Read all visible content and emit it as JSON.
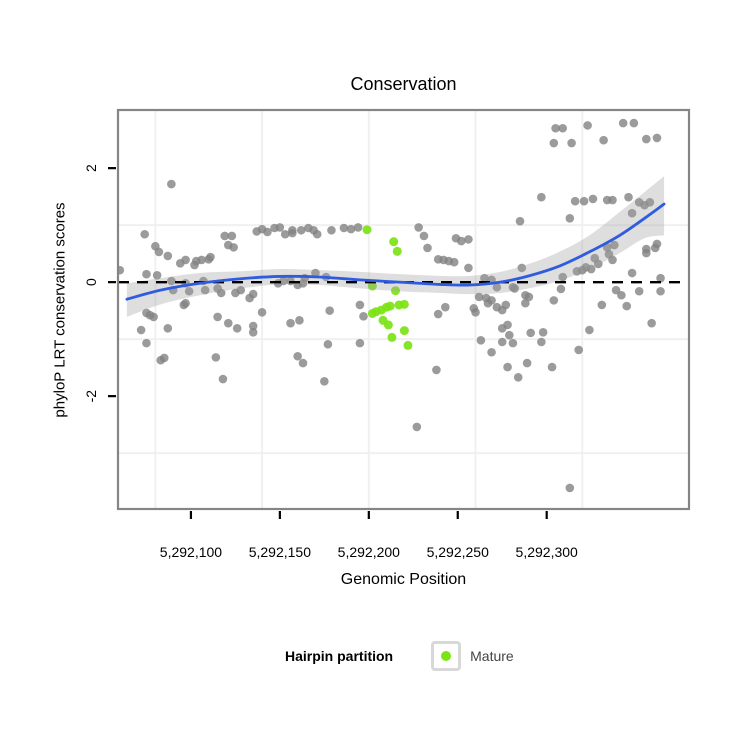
{
  "title": "Conservation",
  "x_axis": {
    "label": "Genomic Position",
    "ticks": [
      {
        "value": 5292100,
        "label": "5,292,100"
      },
      {
        "value": 5292150,
        "label": "5,292,150"
      },
      {
        "value": 5292200,
        "label": "5,292,200"
      },
      {
        "value": 5292250,
        "label": "5,292,250"
      },
      {
        "value": 5292300,
        "label": "5,292,300"
      }
    ]
  },
  "y_axis": {
    "label": "phyloP LRT conservation scores",
    "ticks": [
      {
        "value": 2,
        "label": "2"
      },
      {
        "value": 0,
        "label": "0"
      },
      {
        "value": -2,
        "label": "-2"
      }
    ]
  },
  "legend": {
    "title": "Hairpin partition",
    "items": [
      {
        "label": "Mature",
        "color": "#7CE314"
      }
    ]
  },
  "colors": {
    "point_gray": "#828282",
    "mature_green": "#7CE314",
    "smooth_line": "#2F5CDF",
    "band": "#9E9E9E",
    "grid": "#F0F0F0",
    "panel_border": "#858585",
    "dashed_line": "#000000",
    "tick": "#000000"
  },
  "chart_data": {
    "type": "scatter",
    "title": "Conservation",
    "xlabel": "Genomic Position",
    "ylabel": "phyloP LRT conservation scores",
    "x_domain": [
      5292059,
      5292380
    ],
    "y_domain": [
      -3.98,
      3.02
    ],
    "x_gridlines": [
      5292080,
      5292140,
      5292200,
      5292260,
      5292320
    ],
    "y_gridlines": [
      -3,
      -1,
      1
    ],
    "zero_line_y": 0,
    "legend_position": "bottom",
    "series": [
      {
        "name": "Conservation scores",
        "color": "#828282",
        "points": [
          [
            5292060,
            0.21
          ],
          [
            5292072,
            -0.84
          ],
          [
            5292074,
            0.84
          ],
          [
            5292075,
            0.14
          ],
          [
            5292075,
            -0.54
          ],
          [
            5292075,
            -1.07
          ],
          [
            5292077,
            -0.58
          ],
          [
            5292079,
            -0.61
          ],
          [
            5292080,
            0.63
          ],
          [
            5292081,
            0.12
          ],
          [
            5292082,
            0.53
          ],
          [
            5292083,
            -1.37
          ],
          [
            5292085,
            -1.33
          ],
          [
            5292087,
            0.46
          ],
          [
            5292087,
            -0.81
          ],
          [
            5292089,
            1.72
          ],
          [
            5292089,
            0.02
          ],
          [
            5292090,
            -0.14
          ],
          [
            5292094,
            0.33
          ],
          [
            5292096,
            -0.4
          ],
          [
            5292097,
            0.39
          ],
          [
            5292097,
            -0.02
          ],
          [
            5292097,
            -0.37
          ],
          [
            5292099,
            -0.16
          ],
          [
            5292102,
            0.3
          ],
          [
            5292103,
            0.37
          ],
          [
            5292106,
            0.39
          ],
          [
            5292107,
            0.02
          ],
          [
            5292108,
            -0.14
          ],
          [
            5292110,
            0.4
          ],
          [
            5292111,
            0.44
          ],
          [
            5292114,
            -1.32
          ],
          [
            5292115,
            -0.11
          ],
          [
            5292115,
            -0.61
          ],
          [
            5292117,
            -0.19
          ],
          [
            5292118,
            -1.7
          ],
          [
            5292119,
            0.81
          ],
          [
            5292121,
            0.65
          ],
          [
            5292121,
            -0.72
          ],
          [
            5292123,
            0.81
          ],
          [
            5292124,
            0.61
          ],
          [
            5292125,
            -0.19
          ],
          [
            5292126,
            -0.81
          ],
          [
            5292128,
            -0.14
          ],
          [
            5292133,
            -0.28
          ],
          [
            5292135,
            -0.21
          ],
          [
            5292135,
            -0.77
          ],
          [
            5292135,
            -0.88
          ],
          [
            5292137,
            0.89
          ],
          [
            5292140,
            0.93
          ],
          [
            5292140,
            -0.53
          ],
          [
            5292143,
            0.88
          ],
          [
            5292147,
            0.95
          ],
          [
            5292149,
            -0.02
          ],
          [
            5292150,
            0.96
          ],
          [
            5292152,
            0.02
          ],
          [
            5292153,
            0.84
          ],
          [
            5292156,
            0.02
          ],
          [
            5292156,
            -0.72
          ],
          [
            5292157,
            0.86
          ],
          [
            5292157,
            0.91
          ],
          [
            5292160,
            -0.05
          ],
          [
            5292160,
            -1.3
          ],
          [
            5292161,
            -0.67
          ],
          [
            5292162,
            0.91
          ],
          [
            5292163,
            -0.02
          ],
          [
            5292163,
            -1.42
          ],
          [
            5292164,
            0.07
          ],
          [
            5292166,
            0.95
          ],
          [
            5292169,
            0.91
          ],
          [
            5292170,
            0.16
          ],
          [
            5292171,
            0.84
          ],
          [
            5292175,
            -1.74
          ],
          [
            5292176,
            0.09
          ],
          [
            5292177,
            -1.09
          ],
          [
            5292178,
            -0.5
          ],
          [
            5292179,
            0.91
          ],
          [
            5292186,
            0.95
          ],
          [
            5292190,
            0.93
          ],
          [
            5292194,
            0.96
          ],
          [
            5292195,
            -0.4
          ],
          [
            5292195,
            -1.07
          ],
          [
            5292197,
            -0.6
          ],
          [
            5292227,
            -2.54
          ],
          [
            5292228,
            0.96
          ],
          [
            5292231,
            0.81
          ],
          [
            5292233,
            0.6
          ],
          [
            5292238,
            -1.54
          ],
          [
            5292239,
            0.4
          ],
          [
            5292239,
            -0.56
          ],
          [
            5292242,
            0.39
          ],
          [
            5292243,
            -0.44
          ],
          [
            5292245,
            0.37
          ],
          [
            5292248,
            0.35
          ],
          [
            5292249,
            0.77
          ],
          [
            5292252,
            0.72
          ],
          [
            5292256,
            0.75
          ],
          [
            5292256,
            0.25
          ],
          [
            5292259,
            -0.46
          ],
          [
            5292260,
            -0.53
          ],
          [
            5292262,
            -0.26
          ],
          [
            5292263,
            -1.02
          ],
          [
            5292265,
            0.07
          ],
          [
            5292266,
            -0.28
          ],
          [
            5292267,
            -0.37
          ],
          [
            5292269,
            0.04
          ],
          [
            5292269,
            -0.32
          ],
          [
            5292269,
            -1.23
          ],
          [
            5292272,
            -0.09
          ],
          [
            5292272,
            -0.44
          ],
          [
            5292275,
            -0.49
          ],
          [
            5292275,
            -0.81
          ],
          [
            5292275,
            -1.05
          ],
          [
            5292277,
            -0.4
          ],
          [
            5292278,
            -0.75
          ],
          [
            5292278,
            -1.49
          ],
          [
            5292279,
            -0.93
          ],
          [
            5292281,
            -0.09
          ],
          [
            5292281,
            -1.07
          ],
          [
            5292282,
            -0.11
          ],
          [
            5292284,
            -1.67
          ],
          [
            5292285,
            1.07
          ],
          [
            5292286,
            0.25
          ],
          [
            5292288,
            -0.23
          ],
          [
            5292288,
            -0.37
          ],
          [
            5292289,
            -1.42
          ],
          [
            5292290,
            -0.26
          ],
          [
            5292291,
            -0.89
          ],
          [
            5292297,
            1.49
          ],
          [
            5292297,
            -1.05
          ],
          [
            5292298,
            -0.88
          ],
          [
            5292303,
            -1.49
          ],
          [
            5292304,
            2.44
          ],
          [
            5292304,
            -0.32
          ],
          [
            5292305,
            2.7
          ],
          [
            5292308,
            -0.12
          ],
          [
            5292309,
            2.7
          ],
          [
            5292309,
            0.09
          ],
          [
            5292313,
            1.12
          ],
          [
            5292313,
            -3.61
          ],
          [
            5292314,
            2.44
          ],
          [
            5292316,
            1.42
          ],
          [
            5292317,
            0.19
          ],
          [
            5292318,
            -1.19
          ],
          [
            5292320,
            0.21
          ],
          [
            5292321,
            1.42
          ],
          [
            5292322,
            0.26
          ],
          [
            5292323,
            2.75
          ],
          [
            5292324,
            -0.84
          ],
          [
            5292325,
            0.23
          ],
          [
            5292326,
            1.46
          ],
          [
            5292327,
            0.42
          ],
          [
            5292329,
            0.32
          ],
          [
            5292331,
            -0.4
          ],
          [
            5292332,
            2.49
          ],
          [
            5292334,
            1.44
          ],
          [
            5292334,
            0.61
          ],
          [
            5292335,
            0.49
          ],
          [
            5292337,
            1.44
          ],
          [
            5292337,
            0.39
          ],
          [
            5292338,
            0.65
          ],
          [
            5292339,
            -0.14
          ],
          [
            5292342,
            -0.23
          ],
          [
            5292343,
            2.79
          ],
          [
            5292345,
            -0.42
          ],
          [
            5292346,
            1.49
          ],
          [
            5292348,
            1.21
          ],
          [
            5292348,
            0.16
          ],
          [
            5292349,
            2.79
          ],
          [
            5292352,
            1.4
          ],
          [
            5292352,
            -0.16
          ],
          [
            5292355,
            1.35
          ],
          [
            5292356,
            2.51
          ],
          [
            5292356,
            0.58
          ],
          [
            5292356,
            0.51
          ],
          [
            5292358,
            1.4
          ],
          [
            5292359,
            -0.72
          ],
          [
            5292361,
            0.6
          ],
          [
            5292362,
            2.53
          ],
          [
            5292362,
            0.67
          ],
          [
            5292364,
            0.07
          ],
          [
            5292364,
            -0.16
          ]
        ]
      },
      {
        "name": "Mature",
        "color": "#7CE314",
        "points": [
          [
            5292199,
            0.92
          ],
          [
            5292202,
            -0.07
          ],
          [
            5292202,
            -0.55
          ],
          [
            5292204,
            -0.52
          ],
          [
            5292207,
            -0.49
          ],
          [
            5292208,
            -0.67
          ],
          [
            5292210,
            -0.44
          ],
          [
            5292211,
            -0.75
          ],
          [
            5292212,
            -0.42
          ],
          [
            5292213,
            -0.97
          ],
          [
            5292214,
            0.71
          ],
          [
            5292215,
            -0.15
          ],
          [
            5292216,
            0.54
          ],
          [
            5292217,
            -0.4
          ],
          [
            5292220,
            -0.39
          ],
          [
            5292220,
            -0.85
          ],
          [
            5292222,
            -1.11
          ]
        ]
      }
    ],
    "smooth": {
      "name": "loess fit with confidence band",
      "color": "#2F5CDF",
      "x": [
        5292064,
        5292083,
        5292105,
        5292128,
        5292150,
        5292172,
        5292195,
        5292217,
        5292240,
        5292257,
        5292274,
        5292290,
        5292307,
        5292324,
        5292341,
        5292355,
        5292366
      ],
      "y": [
        -0.3,
        -0.14,
        -0.02,
        0.06,
        0.1,
        0.09,
        0.04,
        0.0,
        -0.04,
        -0.05,
        0.0,
        0.11,
        0.28,
        0.53,
        0.82,
        1.12,
        1.37
      ],
      "ci_upper": [
        -0.02,
        0.07,
        0.16,
        0.19,
        0.23,
        0.21,
        0.18,
        0.14,
        0.11,
        0.11,
        0.18,
        0.32,
        0.53,
        0.82,
        1.23,
        1.58,
        1.86
      ],
      "ci_lower": [
        -0.61,
        -0.39,
        -0.23,
        -0.11,
        -0.04,
        -0.05,
        -0.11,
        -0.16,
        -0.19,
        -0.21,
        -0.19,
        -0.11,
        0.02,
        0.23,
        0.51,
        0.77,
        0.82
      ]
    }
  }
}
